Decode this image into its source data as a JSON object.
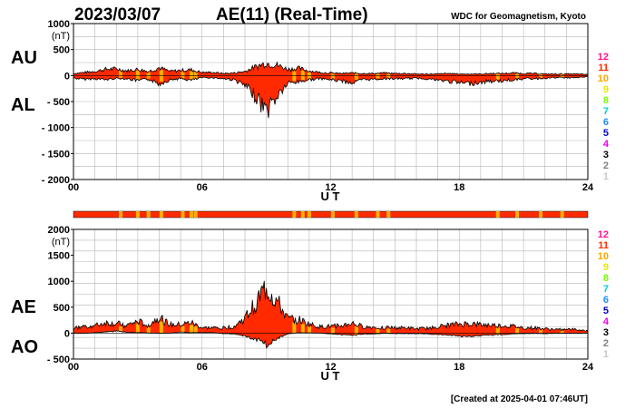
{
  "header": {
    "date": "2023/03/07",
    "title": "AE(11) (Real-Time)",
    "source": "WDC for Geomagnetism, Kyoto"
  },
  "footer": {
    "created": "[Created at 2025-04-01 07:46UT]"
  },
  "colors": {
    "fill": "#ff2a00",
    "trace": "#000000",
    "grid": "#b4b4b4",
    "bar": "#ff2a00",
    "bar_mark": "#ffb000"
  },
  "station_legend": [
    {
      "label": "12",
      "color": "#ff1493"
    },
    {
      "label": "11",
      "color": "#ff2a00"
    },
    {
      "label": "10",
      "color": "#ffa500"
    },
    {
      "label": "9",
      "color": "#e6e600"
    },
    {
      "label": "8",
      "color": "#7cfc00"
    },
    {
      "label": "7",
      "color": "#00ced1"
    },
    {
      "label": "6",
      "color": "#1e90ff"
    },
    {
      "label": "5",
      "color": "#0000cd"
    },
    {
      "label": "4",
      "color": "#ee00ee"
    },
    {
      "label": "3",
      "color": "#000000"
    },
    {
      "label": "2",
      "color": "#808080"
    },
    {
      "label": "1",
      "color": "#c8c8c8"
    }
  ],
  "station_bar_marks": [
    2.2,
    3.0,
    3.5,
    4.1,
    5.1,
    5.5,
    5.7,
    10.3,
    10.7,
    11.0,
    12.1,
    13.2,
    14.2,
    14.7,
    19.8,
    20.7,
    21.8,
    22.8
  ],
  "chart_data": [
    {
      "type": "area",
      "labels": [
        "AU",
        "AL"
      ],
      "unit_label": "(nT)",
      "xlabel": "U T",
      "xlim": [
        0,
        24
      ],
      "ylim": [
        -2000,
        1000
      ],
      "xticks": [
        "00",
        "06",
        "12",
        "18",
        "24"
      ],
      "yticks": [
        "1000",
        "500",
        "0",
        "- 500",
        "- 1000",
        "- 1500",
        "- 2000"
      ],
      "ytick_values": [
        1000,
        500,
        0,
        -500,
        -1000,
        -1500,
        -2000
      ],
      "series": [
        {
          "id": "AU",
          "x": [
            0,
            0.5,
            1,
            1.5,
            2,
            2.5,
            3,
            3.5,
            4,
            4.5,
            5,
            5.5,
            6,
            6.5,
            7,
            7.5,
            8,
            8.5,
            9,
            9.5,
            10,
            10.5,
            11,
            11.5,
            12,
            12.5,
            13,
            13.5,
            14,
            14.5,
            15,
            15.5,
            16,
            16.5,
            17,
            17.5,
            18,
            18.5,
            19,
            19.5,
            20,
            20.5,
            21,
            21.5,
            22,
            22.5,
            23,
            23.5,
            24
          ],
          "values": [
            40,
            60,
            80,
            120,
            130,
            90,
            120,
            80,
            150,
            80,
            100,
            110,
            60,
            60,
            40,
            50,
            80,
            170,
            240,
            200,
            120,
            140,
            90,
            60,
            50,
            40,
            50,
            40,
            40,
            50,
            40,
            40,
            30,
            30,
            30,
            40,
            30,
            30,
            30,
            40,
            40,
            50,
            40,
            40,
            30,
            30,
            30,
            30,
            20
          ]
        },
        {
          "id": "AL",
          "x": [
            0,
            0.5,
            1,
            1.5,
            2,
            2.5,
            3,
            3.5,
            4,
            4.5,
            5,
            5.5,
            6,
            6.5,
            7,
            7.5,
            8,
            8.5,
            9,
            9.5,
            10,
            10.5,
            11,
            11.5,
            12,
            12.5,
            13,
            13.5,
            14,
            14.5,
            15,
            15.5,
            16,
            16.5,
            17,
            17.5,
            18,
            18.5,
            19,
            19.5,
            20,
            20.5,
            21,
            21.5,
            22,
            22.5,
            23,
            23.5,
            24
          ],
          "values": [
            -50,
            -70,
            -60,
            -80,
            -50,
            -60,
            -100,
            -70,
            -160,
            -80,
            -60,
            -90,
            -40,
            -40,
            -60,
            -80,
            -200,
            -400,
            -680,
            -400,
            -150,
            -120,
            -80,
            -60,
            -80,
            -100,
            -140,
            -80,
            -70,
            -60,
            -60,
            -60,
            -50,
            -60,
            -90,
            -110,
            -140,
            -150,
            -130,
            -110,
            -100,
            -80,
            -60,
            -60,
            -50,
            -40,
            -40,
            -40,
            -20
          ]
        }
      ]
    },
    {
      "type": "area",
      "labels": [
        "AE",
        "AO"
      ],
      "unit_label": "(nT)",
      "xlabel": "U T",
      "xlim": [
        0,
        24
      ],
      "ylim": [
        -500,
        2000
      ],
      "xticks": [
        "00",
        "06",
        "12",
        "18",
        "24"
      ],
      "yticks": [
        "2000",
        "1500",
        "1000",
        "500",
        "0",
        "- 500"
      ],
      "ytick_values": [
        2000,
        1500,
        1000,
        500,
        0,
        -500
      ],
      "series": [
        {
          "id": "AE",
          "x": [
            0,
            0.5,
            1,
            1.5,
            2,
            2.5,
            3,
            3.5,
            4,
            4.5,
            5,
            5.5,
            6,
            6.5,
            7,
            7.5,
            8,
            8.5,
            9,
            9.5,
            10,
            10.5,
            11,
            11.5,
            12,
            12.5,
            13,
            13.5,
            14,
            14.5,
            15,
            15.5,
            16,
            16.5,
            17,
            17.5,
            18,
            18.5,
            19,
            19.5,
            20,
            20.5,
            21,
            21.5,
            22,
            22.5,
            23,
            23.5,
            24
          ],
          "values": [
            90,
            130,
            140,
            200,
            180,
            150,
            220,
            150,
            310,
            160,
            160,
            200,
            100,
            100,
            100,
            130,
            280,
            570,
            880,
            600,
            270,
            260,
            170,
            120,
            130,
            140,
            190,
            120,
            110,
            110,
            100,
            100,
            80,
            90,
            120,
            150,
            170,
            180,
            160,
            150,
            140,
            130,
            100,
            100,
            80,
            70,
            70,
            70,
            40
          ]
        },
        {
          "id": "AO",
          "x": [
            0,
            0.5,
            1,
            1.5,
            2,
            2.5,
            3,
            3.5,
            4,
            4.5,
            5,
            5.5,
            6,
            6.5,
            7,
            7.5,
            8,
            8.5,
            9,
            9.5,
            10,
            10.5,
            11,
            11.5,
            12,
            12.5,
            13,
            13.5,
            14,
            14.5,
            15,
            15.5,
            16,
            16.5,
            17,
            17.5,
            18,
            18.5,
            19,
            19.5,
            20,
            20.5,
            21,
            21.5,
            22,
            22.5,
            23,
            23.5,
            24
          ],
          "values": [
            -5,
            -5,
            10,
            20,
            40,
            15,
            10,
            5,
            -5,
            0,
            20,
            10,
            10,
            10,
            -10,
            -15,
            -60,
            -115,
            -220,
            -100,
            -15,
            10,
            5,
            0,
            -15,
            -30,
            -45,
            -20,
            -15,
            -5,
            -10,
            -10,
            -10,
            -15,
            -30,
            -35,
            -55,
            -60,
            -50,
            -35,
            -30,
            -15,
            -10,
            -10,
            -10,
            -5,
            -5,
            -5,
            0
          ]
        }
      ]
    }
  ]
}
